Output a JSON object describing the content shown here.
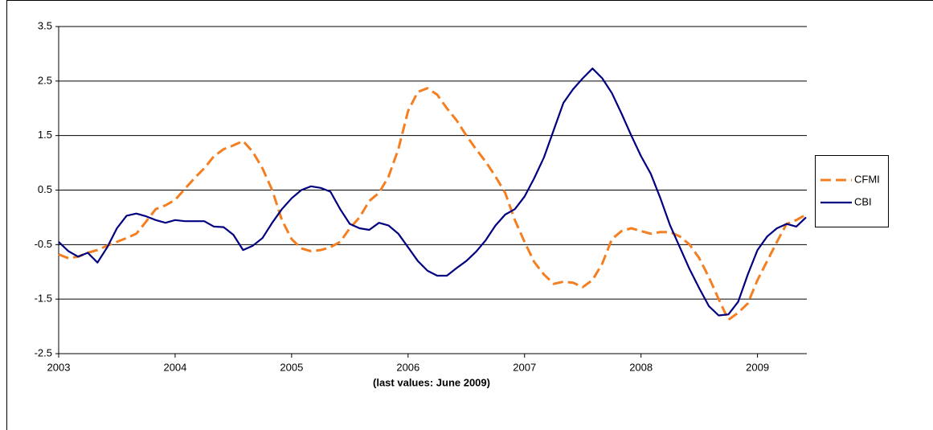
{
  "chart_data": {
    "type": "line",
    "xlabel": "(last values: June 2009)",
    "categories": [
      "2003",
      null,
      null,
      null,
      null,
      null,
      null,
      null,
      null,
      null,
      null,
      null,
      "2004",
      null,
      null,
      null,
      null,
      null,
      null,
      null,
      null,
      null,
      null,
      null,
      "2005",
      null,
      null,
      null,
      null,
      null,
      null,
      null,
      null,
      null,
      null,
      null,
      "2006",
      null,
      null,
      null,
      null,
      null,
      null,
      null,
      null,
      null,
      null,
      null,
      "2007",
      null,
      null,
      null,
      null,
      null,
      null,
      null,
      null,
      null,
      null,
      null,
      "2008",
      null,
      null,
      null,
      null,
      null,
      null,
      null,
      null,
      null,
      null,
      null,
      "2009",
      null,
      null,
      null,
      null,
      null
    ],
    "series": [
      {
        "name": "CFMI",
        "color": "#f57f20",
        "dash": true,
        "values": [
          -0.68,
          -0.75,
          -0.72,
          -0.65,
          -0.6,
          -0.52,
          -0.45,
          -0.38,
          -0.3,
          -0.08,
          0.15,
          0.22,
          0.32,
          0.52,
          0.72,
          0.9,
          1.12,
          1.25,
          1.32,
          1.4,
          1.2,
          0.9,
          0.5,
          -0.05,
          -0.4,
          -0.57,
          -0.62,
          -0.6,
          -0.55,
          -0.45,
          -0.2,
          0.0,
          0.3,
          0.45,
          0.75,
          1.25,
          1.95,
          2.3,
          2.37,
          2.25,
          2.0,
          1.78,
          1.5,
          1.25,
          1.02,
          0.75,
          0.45,
          -0.05,
          -0.45,
          -0.82,
          -1.05,
          -1.22,
          -1.18,
          -1.2,
          -1.28,
          -1.15,
          -0.85,
          -0.4,
          -0.25,
          -0.2,
          -0.25,
          -0.3,
          -0.27,
          -0.27,
          -0.35,
          -0.5,
          -0.75,
          -1.1,
          -1.5,
          -1.88,
          -1.75,
          -1.58,
          -1.15,
          -0.8,
          -0.45,
          -0.12,
          -0.05,
          0.05
        ]
      },
      {
        "name": "CBI",
        "color": "#000080",
        "dash": false,
        "values": [
          -0.45,
          -0.62,
          -0.72,
          -0.65,
          -0.83,
          -0.55,
          -0.2,
          0.03,
          0.07,
          0.02,
          -0.05,
          -0.1,
          -0.05,
          -0.07,
          -0.07,
          -0.07,
          -0.17,
          -0.18,
          -0.32,
          -0.6,
          -0.52,
          -0.38,
          -0.1,
          0.15,
          0.35,
          0.5,
          0.57,
          0.54,
          0.47,
          0.15,
          -0.12,
          -0.2,
          -0.23,
          -0.1,
          -0.15,
          -0.3,
          -0.55,
          -0.8,
          -0.98,
          -1.07,
          -1.07,
          -0.93,
          -0.8,
          -0.63,
          -0.42,
          -0.15,
          0.05,
          0.15,
          0.38,
          0.72,
          1.1,
          1.6,
          2.1,
          2.35,
          2.55,
          2.73,
          2.55,
          2.28,
          1.9,
          1.5,
          1.12,
          0.8,
          0.35,
          -0.15,
          -0.55,
          -0.95,
          -1.3,
          -1.63,
          -1.8,
          -1.78,
          -1.55,
          -1.05,
          -0.6,
          -0.35,
          -0.2,
          -0.12,
          -0.17,
          0.0
        ]
      }
    ],
    "ylim": [
      -2.5,
      3.5
    ],
    "yticks": [
      -2.5,
      -1.5,
      -0.5,
      0.5,
      1.5,
      2.5,
      3.5
    ],
    "grid": true,
    "legend": "right"
  }
}
